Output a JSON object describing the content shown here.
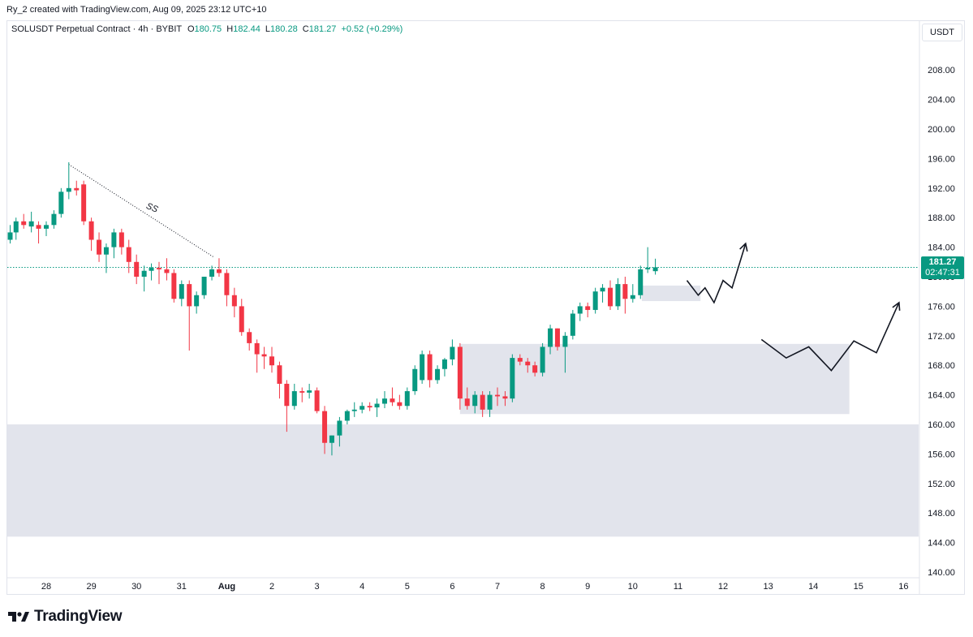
{
  "header": {
    "attribution": "Ry_2 created with TradingView.com, Aug 09, 2025 23:12 UTC+10"
  },
  "legend": {
    "symbol": "SOLUSDT Perpetual Contract · 4h · BYBIT",
    "o_label": "O",
    "o_value": "180.75",
    "h_label": "H",
    "h_value": "182.44",
    "l_label": "L",
    "l_value": "180.28",
    "c_label": "C",
    "c_value": "181.27",
    "change": "+0.52 (+0.29%)"
  },
  "axis_unit": "USDT",
  "price_tag": {
    "price": "181.27",
    "countdown": "02:47:31"
  },
  "brand": {
    "name": "TradingView",
    "logo_icon": "tradingview-logo-icon"
  },
  "colors": {
    "up": "#089981",
    "down": "#f23645",
    "zone": "#e0e3eb",
    "last_price_line": "#089981"
  },
  "chart_data": {
    "type": "candlestick",
    "title": "SOLUSDT Perpetual Contract · 4h · BYBIT",
    "y_unit": "USDT",
    "ylim": [
      139,
      212
    ],
    "y_ticks": [
      140,
      144,
      148,
      152,
      156,
      160,
      164,
      168,
      172,
      176,
      180,
      184,
      188,
      192,
      196,
      200,
      204,
      208
    ],
    "y_tick_labels": [
      "140.00",
      "144.00",
      "148.00",
      "152.00",
      "156.00",
      "160.00",
      "164.00",
      "168.00",
      "172.00",
      "176.00",
      "180.00",
      "184.00",
      "188.00",
      "192.00",
      "196.00",
      "200.00",
      "204.00",
      "208.00"
    ],
    "x_ticks": [
      {
        "label": "28",
        "day": 0
      },
      {
        "label": "29",
        "day": 1
      },
      {
        "label": "30",
        "day": 2
      },
      {
        "label": "31",
        "day": 3
      },
      {
        "label": "Aug",
        "day": 4,
        "bold": true
      },
      {
        "label": "2",
        "day": 5
      },
      {
        "label": "3",
        "day": 6
      },
      {
        "label": "4",
        "day": 7
      },
      {
        "label": "5",
        "day": 8
      },
      {
        "label": "6",
        "day": 9
      },
      {
        "label": "7",
        "day": 10
      },
      {
        "label": "8",
        "day": 11
      },
      {
        "label": "9",
        "day": 12
      },
      {
        "label": "10",
        "day": 13
      },
      {
        "label": "11",
        "day": 14
      },
      {
        "label": "12",
        "day": 15
      },
      {
        "label": "13",
        "day": 16
      },
      {
        "label": "14",
        "day": 17
      },
      {
        "label": "15",
        "day": 18
      },
      {
        "label": "16",
        "day": 19
      }
    ],
    "x_range_days": [
      -0.87,
      19.5
    ],
    "last_price": 181.27,
    "candles": [
      {
        "d": -0.8,
        "o": 185,
        "h": 187,
        "l": 184.5,
        "c": 186
      },
      {
        "d": -0.67,
        "o": 186,
        "h": 188,
        "l": 185,
        "c": 187.5
      },
      {
        "d": -0.5,
        "o": 187.5,
        "h": 188.5,
        "l": 186.5,
        "c": 187
      },
      {
        "d": -0.33,
        "o": 186.8,
        "h": 188.8,
        "l": 186,
        "c": 187.5
      },
      {
        "d": -0.17,
        "o": 187,
        "h": 187.5,
        "l": 184.5,
        "c": 186.5
      },
      {
        "d": 0,
        "o": 186.5,
        "h": 187.5,
        "l": 185.5,
        "c": 187
      },
      {
        "d": 0.17,
        "o": 187,
        "h": 189,
        "l": 186.5,
        "c": 188.5
      },
      {
        "d": 0.33,
        "o": 188.5,
        "h": 192,
        "l": 188,
        "c": 191.5
      },
      {
        "d": 0.5,
        "o": 191.5,
        "h": 195.5,
        "l": 190.5,
        "c": 192
      },
      {
        "d": 0.67,
        "o": 192,
        "h": 193,
        "l": 191,
        "c": 191.7
      },
      {
        "d": 0.83,
        "o": 192.5,
        "h": 193,
        "l": 187,
        "c": 187.5
      },
      {
        "d": 1,
        "o": 187.5,
        "h": 188,
        "l": 183.5,
        "c": 185
      },
      {
        "d": 1.17,
        "o": 185,
        "h": 186,
        "l": 182,
        "c": 183
      },
      {
        "d": 1.33,
        "o": 183,
        "h": 184.5,
        "l": 180.5,
        "c": 184
      },
      {
        "d": 1.5,
        "o": 184,
        "h": 186.5,
        "l": 182.5,
        "c": 186
      },
      {
        "d": 1.67,
        "o": 186,
        "h": 186.5,
        "l": 183,
        "c": 184
      },
      {
        "d": 1.83,
        "o": 184,
        "h": 185,
        "l": 180.5,
        "c": 182
      },
      {
        "d": 2,
        "o": 182,
        "h": 183,
        "l": 179,
        "c": 180
      },
      {
        "d": 2.17,
        "o": 180,
        "h": 181.5,
        "l": 178,
        "c": 180.8
      },
      {
        "d": 2.33,
        "o": 180.8,
        "h": 181.8,
        "l": 179.5,
        "c": 181.2
      },
      {
        "d": 2.5,
        "o": 181.2,
        "h": 182,
        "l": 179,
        "c": 181
      },
      {
        "d": 2.67,
        "o": 181,
        "h": 182.5,
        "l": 179.5,
        "c": 180.5
      },
      {
        "d": 2.83,
        "o": 180.5,
        "h": 181,
        "l": 176.5,
        "c": 177
      },
      {
        "d": 3,
        "o": 177,
        "h": 179.5,
        "l": 176,
        "c": 179
      },
      {
        "d": 3.17,
        "o": 179,
        "h": 179.5,
        "l": 170,
        "c": 176
      },
      {
        "d": 3.33,
        "o": 176,
        "h": 178,
        "l": 175,
        "c": 177.5
      },
      {
        "d": 3.5,
        "o": 177.5,
        "h": 180,
        "l": 177,
        "c": 180
      },
      {
        "d": 3.67,
        "o": 180,
        "h": 181.5,
        "l": 179.5,
        "c": 181
      },
      {
        "d": 3.83,
        "o": 181,
        "h": 182.5,
        "l": 180,
        "c": 180.5
      },
      {
        "d": 4,
        "o": 180.5,
        "h": 181,
        "l": 176,
        "c": 177.5
      },
      {
        "d": 4.17,
        "o": 177.5,
        "h": 178.5,
        "l": 174.5,
        "c": 176
      },
      {
        "d": 4.33,
        "o": 176,
        "h": 177,
        "l": 172,
        "c": 172.5
      },
      {
        "d": 4.5,
        "o": 172.5,
        "h": 173,
        "l": 170,
        "c": 171
      },
      {
        "d": 4.67,
        "o": 171,
        "h": 171.5,
        "l": 167,
        "c": 169.5
      },
      {
        "d": 4.83,
        "o": 169.5,
        "h": 170.5,
        "l": 167.5,
        "c": 169.2
      },
      {
        "d": 5,
        "o": 169.2,
        "h": 170.5,
        "l": 167,
        "c": 168
      },
      {
        "d": 5.17,
        "o": 168,
        "h": 168.5,
        "l": 163.5,
        "c": 165.5
      },
      {
        "d": 5.33,
        "o": 165.5,
        "h": 166,
        "l": 159,
        "c": 162.5
      },
      {
        "d": 5.5,
        "o": 162.5,
        "h": 165.5,
        "l": 162,
        "c": 164.5
      },
      {
        "d": 5.67,
        "o": 164.5,
        "h": 165,
        "l": 163,
        "c": 164.3
      },
      {
        "d": 5.83,
        "o": 164.3,
        "h": 165.5,
        "l": 163.5,
        "c": 164.6
      },
      {
        "d": 6,
        "o": 164.6,
        "h": 165,
        "l": 161.5,
        "c": 161.8
      },
      {
        "d": 6.17,
        "o": 161.8,
        "h": 162.5,
        "l": 156,
        "c": 157.5
      },
      {
        "d": 6.33,
        "o": 157.5,
        "h": 158.5,
        "l": 155.8,
        "c": 158.5
      },
      {
        "d": 6.5,
        "o": 158.5,
        "h": 161,
        "l": 157,
        "c": 160.5
      },
      {
        "d": 6.67,
        "o": 160.5,
        "h": 162,
        "l": 160,
        "c": 161.8
      },
      {
        "d": 6.83,
        "o": 161.8,
        "h": 163,
        "l": 161,
        "c": 162
      },
      {
        "d": 7,
        "o": 162,
        "h": 163,
        "l": 161.5,
        "c": 162.5
      },
      {
        "d": 7.17,
        "o": 162.5,
        "h": 163,
        "l": 161.8,
        "c": 162.3
      },
      {
        "d": 7.33,
        "o": 162.3,
        "h": 163.5,
        "l": 161,
        "c": 162.8
      },
      {
        "d": 7.5,
        "o": 162.8,
        "h": 164.5,
        "l": 162.2,
        "c": 163.5
      },
      {
        "d": 7.67,
        "o": 163.5,
        "h": 165,
        "l": 162.5,
        "c": 163
      },
      {
        "d": 7.83,
        "o": 163,
        "h": 164,
        "l": 162,
        "c": 162.5
      },
      {
        "d": 8,
        "o": 162.5,
        "h": 165,
        "l": 162,
        "c": 164.5
      },
      {
        "d": 8.17,
        "o": 164.5,
        "h": 168,
        "l": 164,
        "c": 167.5
      },
      {
        "d": 8.33,
        "o": 166,
        "h": 170,
        "l": 165.5,
        "c": 169.5
      },
      {
        "d": 8.5,
        "o": 169.5,
        "h": 170,
        "l": 165,
        "c": 166
      },
      {
        "d": 8.67,
        "o": 166,
        "h": 168,
        "l": 165.5,
        "c": 167.5
      },
      {
        "d": 8.83,
        "o": 167.5,
        "h": 169,
        "l": 166.5,
        "c": 168.8
      },
      {
        "d": 9,
        "o": 168.8,
        "h": 171.5,
        "l": 168,
        "c": 170.5
      },
      {
        "d": 9.17,
        "o": 170.5,
        "h": 171,
        "l": 162,
        "c": 163.5
      },
      {
        "d": 9.33,
        "o": 163.5,
        "h": 165,
        "l": 162,
        "c": 162.5
      },
      {
        "d": 9.5,
        "o": 162.5,
        "h": 164.5,
        "l": 161.5,
        "c": 164
      },
      {
        "d": 9.67,
        "o": 164,
        "h": 164.5,
        "l": 161,
        "c": 162
      },
      {
        "d": 9.83,
        "o": 162,
        "h": 164.5,
        "l": 161,
        "c": 164
      },
      {
        "d": 10,
        "o": 164,
        "h": 165,
        "l": 162.5,
        "c": 163.8
      },
      {
        "d": 10.17,
        "o": 163.8,
        "h": 164.5,
        "l": 162.5,
        "c": 163.5
      },
      {
        "d": 10.33,
        "o": 163.5,
        "h": 169.5,
        "l": 163,
        "c": 169
      },
      {
        "d": 10.5,
        "o": 169,
        "h": 169.5,
        "l": 168,
        "c": 168.5
      },
      {
        "d": 10.67,
        "o": 168.5,
        "h": 169,
        "l": 167,
        "c": 168
      },
      {
        "d": 10.83,
        "o": 168,
        "h": 168.5,
        "l": 166.5,
        "c": 167
      },
      {
        "d": 11,
        "o": 167,
        "h": 171,
        "l": 166.5,
        "c": 170.5
      },
      {
        "d": 11.17,
        "o": 170.5,
        "h": 173.5,
        "l": 169.5,
        "c": 173
      },
      {
        "d": 11.33,
        "o": 173,
        "h": 173,
        "l": 170,
        "c": 170.5
      },
      {
        "d": 11.5,
        "o": 170.5,
        "h": 172.5,
        "l": 167,
        "c": 172
      },
      {
        "d": 11.67,
        "o": 172,
        "h": 175.5,
        "l": 171.5,
        "c": 175
      },
      {
        "d": 11.83,
        "o": 175,
        "h": 176.5,
        "l": 174,
        "c": 176
      },
      {
        "d": 12,
        "o": 176,
        "h": 176.5,
        "l": 174.5,
        "c": 175.5
      },
      {
        "d": 12.17,
        "o": 175.5,
        "h": 178.5,
        "l": 175,
        "c": 178
      },
      {
        "d": 12.33,
        "o": 178,
        "h": 179,
        "l": 176.5,
        "c": 178.5
      },
      {
        "d": 12.5,
        "o": 178.5,
        "h": 179.5,
        "l": 175.5,
        "c": 176
      },
      {
        "d": 12.67,
        "o": 176,
        "h": 179.8,
        "l": 175.5,
        "c": 179
      },
      {
        "d": 12.83,
        "o": 179,
        "h": 180,
        "l": 175,
        "c": 177
      },
      {
        "d": 13,
        "o": 177,
        "h": 179,
        "l": 176.5,
        "c": 177.5
      },
      {
        "d": 13.17,
        "o": 177.5,
        "h": 181.5,
        "l": 177,
        "c": 181
      },
      {
        "d": 13.33,
        "o": 181,
        "h": 184,
        "l": 180.5,
        "c": 181.2
      },
      {
        "d": 13.5,
        "o": 180.75,
        "h": 182.44,
        "l": 180.28,
        "c": 181.27
      }
    ],
    "zones": [
      {
        "d0": -0.87,
        "d1": 19.5,
        "y0": 144.8,
        "y1": 160
      },
      {
        "d0": 9.17,
        "d1": 17.8,
        "y0": 161.4,
        "y1": 170.9
      },
      {
        "d0": 13.2,
        "d1": 14.5,
        "y0": 176.7,
        "y1": 178.8
      }
    ],
    "annotations": [
      {
        "type": "dotted-trendline",
        "points": [
          [
            0.5,
            195.2
          ],
          [
            3.7,
            182.7
          ]
        ],
        "label": "SS",
        "label_at": [
          2.2,
          189.3
        ]
      },
      {
        "type": "arrow-path",
        "points": [
          [
            14.2,
            179.5
          ],
          [
            14.45,
            177.5
          ],
          [
            14.6,
            178.5
          ],
          [
            14.8,
            176.5
          ],
          [
            15.0,
            179.5
          ],
          [
            15.2,
            178.5
          ],
          [
            15.5,
            184.5
          ]
        ]
      },
      {
        "type": "arrow-path",
        "points": [
          [
            15.85,
            171.5
          ],
          [
            16.4,
            169
          ],
          [
            16.9,
            170.5
          ],
          [
            17.4,
            167.3
          ],
          [
            17.9,
            171.3
          ],
          [
            18.4,
            169.7
          ],
          [
            18.9,
            176.5
          ]
        ]
      }
    ]
  }
}
